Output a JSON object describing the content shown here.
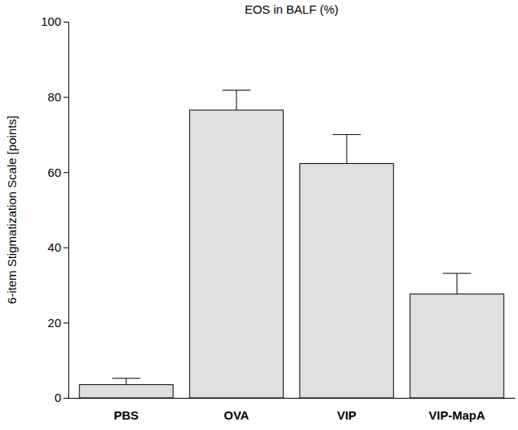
{
  "chart_data": {
    "type": "bar",
    "title": "EOS in BALF (%)",
    "y_label": "6-item Stigmatization Scale [points]",
    "categories": [
      "PBS",
      "OVA",
      "VIP",
      "VIP-MapA"
    ],
    "values": [
      3.5,
      76.5,
      62.3,
      27.6
    ],
    "errors": [
      1.7,
      5.3,
      7.7,
      5.5
    ],
    "color": "#e0e0e0",
    "ylim": [
      0,
      100
    ],
    "yticks": [
      0,
      20,
      40,
      60,
      80,
      100
    ],
    "grid": false
  }
}
